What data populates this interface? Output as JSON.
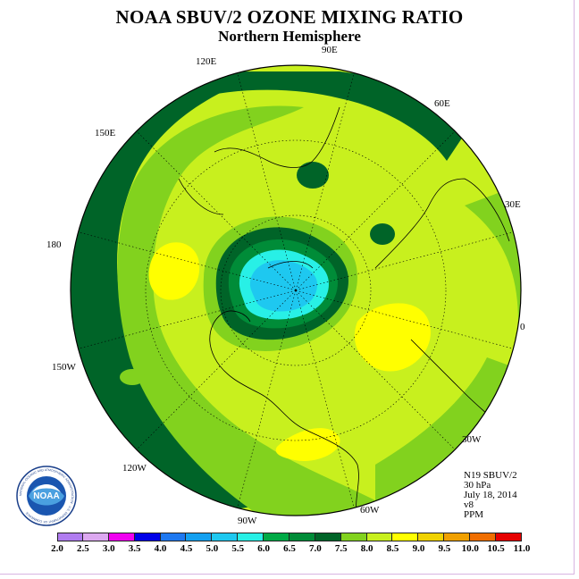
{
  "title": "NOAA SBUV/2 OZONE MIXING RATIO",
  "subtitle": "Northern Hemisphere",
  "longitude_labels": [
    "90E",
    "60E",
    "30E",
    "0",
    "30W",
    "60W",
    "90W",
    "120W",
    "150W",
    "180",
    "150E",
    "120E"
  ],
  "info": {
    "instrument": "N19 SBUV/2",
    "level": "30 hPa",
    "date": "July 18, 2014",
    "version": "v8",
    "units": "PPM"
  },
  "colorbar": {
    "labels": [
      "2.0",
      "2.5",
      "3.0",
      "3.5",
      "4.0",
      "4.5",
      "5.0",
      "5.5",
      "6.0",
      "6.5",
      "7.0",
      "7.5",
      "8.0",
      "8.5",
      "9.0",
      "9.5",
      "10.0",
      "10.5",
      "11.0"
    ],
    "colors": [
      "#b07cf0",
      "#dca8f0",
      "#f000f0",
      "#0000e8",
      "#1e78f0",
      "#14a0f0",
      "#1ec8f0",
      "#28f0e6",
      "#00aa46",
      "#008c38",
      "#006428",
      "#82d21e",
      "#c8f01e",
      "#ffff00",
      "#f0d200",
      "#f0a000",
      "#f06e00",
      "#e60000",
      "#a0522d"
    ]
  },
  "logo": {
    "text": "NOAA",
    "ring_text": "NATIONAL OCEANIC AND ATMOSPHERIC ADMINISTRATION · U.S. DEPARTMENT OF COMMERCE"
  }
}
